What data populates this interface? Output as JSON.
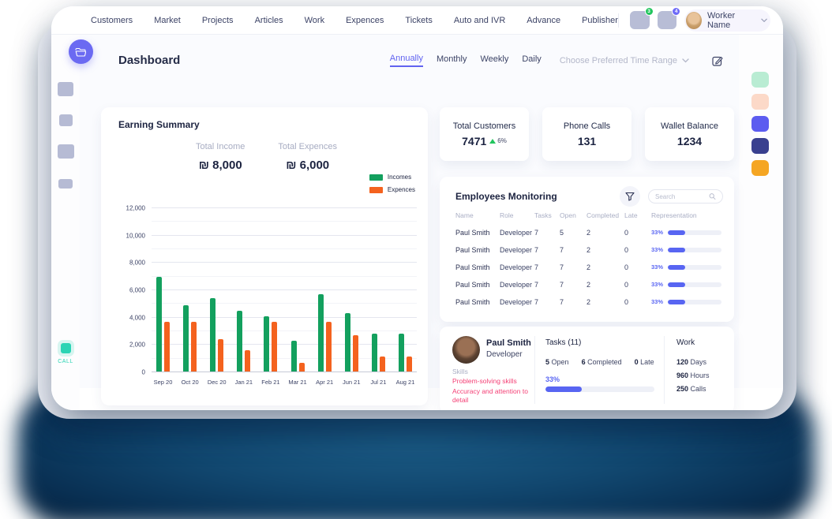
{
  "nav": {
    "items": [
      "Customers",
      "Market",
      "Projects",
      "Articles",
      "Work",
      "Expences",
      "Tickets",
      "Auto and IVR",
      "Advance",
      "Publisher"
    ],
    "badges": [
      {
        "count": "3",
        "color": "#22c55e"
      },
      {
        "count": "4",
        "color": "#6d6af8"
      }
    ],
    "user": {
      "name": "Worker Name"
    }
  },
  "header": {
    "title": "Dashboard",
    "tabs": [
      {
        "label": "Annually",
        "active": true
      },
      {
        "label": "Monthly",
        "active": false
      },
      {
        "label": "Weekly",
        "active": false
      },
      {
        "label": "Daily",
        "active": false
      }
    ],
    "time_range_placeholder": "Choose Preferred Time Range"
  },
  "earning_summary": {
    "title": "Earning Summary",
    "total_income_label": "Total Income",
    "total_income": "₪ 8,000",
    "total_expences_label": "Total Expences",
    "total_expences": "₪ 6,000",
    "legend": [
      {
        "label": "Incomes",
        "color": "#13a05e"
      },
      {
        "label": "Expences",
        "color": "#f4621e"
      }
    ]
  },
  "chart_data": {
    "type": "bar",
    "title": "Earning Summary",
    "categories": [
      "Sep 20",
      "Oct 20",
      "Dec 20",
      "Jan 21",
      "Feb 21",
      "Mar 21",
      "Apr 21",
      "Jun 21",
      "Jul 21",
      "Aug 21"
    ],
    "series": [
      {
        "name": "Incomes",
        "color": "#13a05e",
        "values": [
          7000,
          4900,
          5400,
          4500,
          4100,
          2300,
          5700,
          4300,
          2800,
          2800
        ]
      },
      {
        "name": "Expences",
        "color": "#f4621e",
        "values": [
          3700,
          3700,
          2400,
          1600,
          3700,
          700,
          3700,
          2700,
          1150,
          1150
        ]
      }
    ],
    "xlabel": "",
    "ylabel": "",
    "ylim": [
      0,
      12000
    ],
    "yticks": [
      0,
      2000,
      4000,
      6000,
      8000,
      10000,
      12000
    ],
    "grid": true,
    "legend_position": "top-right"
  },
  "stats": [
    {
      "label": "Total Customers",
      "value": "7471",
      "delta": "6%"
    },
    {
      "label": "Phone Calls",
      "value": "131"
    },
    {
      "label": "Wallet Balance",
      "value": "1234"
    }
  ],
  "employees": {
    "title": "Employees Monitoring",
    "search_placeholder": "Search",
    "columns": [
      "Name",
      "Role",
      "Tasks",
      "Open",
      "Completed",
      "Late",
      "Representation"
    ],
    "rows": [
      {
        "name": "Paul Smith",
        "role": "Developer",
        "tasks": "7",
        "open": "5",
        "completed": "2",
        "late": "0",
        "representation": "33%",
        "pct": 33
      },
      {
        "name": "Paul Smith",
        "role": "Developer",
        "tasks": "7",
        "open": "7",
        "completed": "2",
        "late": "0",
        "representation": "33%",
        "pct": 33
      },
      {
        "name": "Paul Smith",
        "role": "Developer",
        "tasks": "7",
        "open": "7",
        "completed": "2",
        "late": "0",
        "representation": "33%",
        "pct": 33
      },
      {
        "name": "Paul Smith",
        "role": "Developer",
        "tasks": "7",
        "open": "7",
        "completed": "2",
        "late": "0",
        "representation": "33%",
        "pct": 33
      },
      {
        "name": "Paul Smith",
        "role": "Developer",
        "tasks": "7",
        "open": "7",
        "completed": "2",
        "late": "0",
        "representation": "33%",
        "pct": 33
      }
    ]
  },
  "employee_detail": {
    "name": "Paul Smith",
    "role": "Developer",
    "skills_label": "Skills",
    "skills": [
      "Problem-solving skills",
      "Accuracy and attention to detail"
    ],
    "tasks_title": "Tasks (11)",
    "task_stats": [
      {
        "value": "5",
        "label": "Open"
      },
      {
        "value": "6",
        "label": "Completed"
      },
      {
        "value": "0",
        "label": "Late"
      }
    ],
    "progress": "33%",
    "progress_pct": 33,
    "work_title": "Work",
    "work": [
      {
        "value": "120",
        "label": "Days"
      },
      {
        "value": "960",
        "label": "Hours"
      },
      {
        "value": "250",
        "label": "Calls"
      }
    ]
  },
  "sidebar": {
    "call_label": "CALL"
  },
  "palette_colors": [
    "#b9ecd3",
    "#fcd9c8",
    "#5c5cf0",
    "#39408f",
    "#f5a623"
  ],
  "accent_colors": {
    "primary": "#6163f0",
    "income": "#13a05e",
    "expense": "#f4621e",
    "progress": "#5865f2",
    "pink": "#f43f75",
    "teal": "#2bd4b4"
  }
}
